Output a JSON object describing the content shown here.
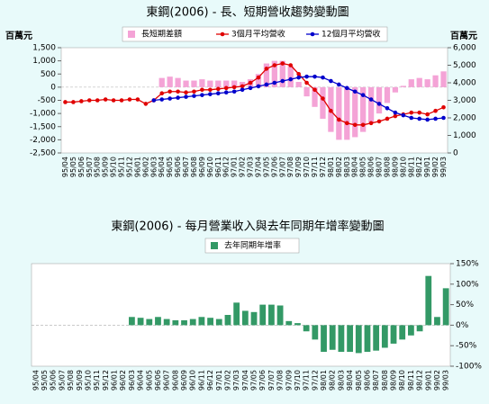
{
  "chart_data": [
    {
      "type": "combo",
      "title": "東鋼(2006) -  長、短期營收趨勢變動圖",
      "ylabel": "百萬元",
      "y2label": "百萬元",
      "categories": [
        "95/04",
        "95/05",
        "95/06",
        "95/07",
        "95/08",
        "95/09",
        "95/10",
        "95/11",
        "95/12",
        "96/01",
        "96/02",
        "96/03",
        "96/04",
        "96/05",
        "96/06",
        "96/07",
        "96/08",
        "96/09",
        "96/10",
        "96/11",
        "96/12",
        "97/01",
        "97/02",
        "97/03",
        "97/04",
        "97/05",
        "97/06",
        "97/07",
        "97/08",
        "97/09",
        "97/10",
        "97/11",
        "97/12",
        "98/01",
        "98/02",
        "98/03",
        "98/04",
        "98/05",
        "98/06",
        "98/07",
        "98/08",
        "98/09",
        "98/10",
        "98/11",
        "98/12",
        "99/01",
        "99/02",
        "99/03"
      ],
      "series": [
        {
          "name": "長短期差額",
          "type": "bar",
          "color": "#f4a3d6",
          "values": [
            null,
            null,
            null,
            null,
            null,
            null,
            null,
            null,
            null,
            null,
            null,
            0,
            350,
            400,
            350,
            250,
            250,
            300,
            250,
            250,
            250,
            250,
            200,
            300,
            500,
            900,
            1000,
            1000,
            800,
            200,
            -350,
            -750,
            -1200,
            -1700,
            -2000,
            -2000,
            -1900,
            -1700,
            -1350,
            -1000,
            -600,
            -200,
            50,
            300,
            350,
            300,
            450,
            600
          ]
        },
        {
          "name": "3個月平均營收",
          "type": "line",
          "axis": "y2",
          "color": "#e00000",
          "values": [
            2900,
            2900,
            2950,
            3000,
            3000,
            3050,
            3000,
            3000,
            3050,
            3050,
            2800,
            3000,
            3400,
            3500,
            3500,
            3450,
            3500,
            3600,
            3600,
            3650,
            3700,
            3750,
            3800,
            4000,
            4300,
            4800,
            5000,
            5100,
            5000,
            4500,
            4000,
            3600,
            3100,
            2400,
            1900,
            1700,
            1600,
            1600,
            1700,
            1800,
            1950,
            2100,
            2200,
            2300,
            2300,
            2200,
            2400,
            2600
          ]
        },
        {
          "name": "12個月平均營收",
          "type": "line",
          "axis": "y2",
          "color": "#0000cc",
          "values": [
            null,
            null,
            null,
            null,
            null,
            null,
            null,
            null,
            null,
            null,
            null,
            3000,
            3050,
            3100,
            3150,
            3200,
            3250,
            3300,
            3350,
            3400,
            3450,
            3500,
            3600,
            3700,
            3800,
            3900,
            4000,
            4100,
            4200,
            4300,
            4350,
            4350,
            4300,
            4100,
            3900,
            3700,
            3500,
            3300,
            3050,
            2800,
            2550,
            2300,
            2150,
            2000,
            1950,
            1900,
            1950,
            2000
          ]
        }
      ],
      "ylim": [
        -2500,
        1500
      ],
      "yticks": [
        {
          "value": -2500,
          "label": "-2,500"
        },
        {
          "value": -2000,
          "label": "-2,000"
        },
        {
          "value": -1500,
          "label": "-1,500"
        },
        {
          "value": -1000,
          "label": "-1,000"
        },
        -500,
        0,
        500,
        {
          "value": 1000,
          "label": "1,000"
        },
        {
          "value": 1500,
          "label": "1,500"
        }
      ],
      "y2lim": [
        0,
        6000
      ],
      "y2ticks": [
        0,
        {
          "value": 1000,
          "label": "1,000"
        },
        {
          "value": 2000,
          "label": "2,000"
        },
        {
          "value": 3000,
          "label": "3,000"
        },
        {
          "value": 4000,
          "label": "4,000"
        },
        {
          "value": 5000,
          "label": "5,000"
        },
        {
          "value": 6000,
          "label": "6,000"
        }
      ],
      "legend": "top"
    },
    {
      "type": "bar",
      "title": "東鋼(2006) -  每月營業收入與去年同期年增率變動圖",
      "categories": [
        "95/04",
        "95/05",
        "95/06",
        "95/07",
        "95/08",
        "95/09",
        "95/10",
        "95/11",
        "95/12",
        "96/01",
        "96/02",
        "96/03",
        "96/04",
        "96/05",
        "96/06",
        "96/07",
        "96/08",
        "96/09",
        "96/10",
        "96/11",
        "96/12",
        "97/01",
        "97/02",
        "97/03",
        "97/04",
        "97/05",
        "97/06",
        "97/07",
        "97/08",
        "97/09",
        "97/10",
        "97/11",
        "97/12",
        "98/01",
        "98/02",
        "98/03",
        "98/04",
        "98/05",
        "98/06",
        "98/07",
        "98/08",
        "98/09",
        "98/10",
        "98/11",
        "98/12",
        "99/01",
        "99/02",
        "99/03"
      ],
      "series": [
        {
          "name": "去年同期年增率",
          "type": "bar",
          "axis": "y2",
          "color": "#339966",
          "values": [
            null,
            null,
            null,
            null,
            null,
            null,
            null,
            null,
            null,
            null,
            null,
            20,
            18,
            15,
            20,
            15,
            12,
            12,
            15,
            20,
            18,
            15,
            25,
            55,
            35,
            32,
            50,
            50,
            48,
            10,
            5,
            -15,
            -35,
            -65,
            -60,
            -65,
            -65,
            -68,
            -65,
            -62,
            -55,
            -45,
            -35,
            -25,
            -15,
            120,
            20,
            90
          ]
        }
      ],
      "y2lim": [
        -100,
        150
      ],
      "y2ticks": [
        {
          "value": -100,
          "label": "-100%"
        },
        {
          "value": -50,
          "label": "-50%"
        },
        {
          "value": 0,
          "label": "0%"
        },
        {
          "value": 50,
          "label": "50%"
        },
        {
          "value": 100,
          "label": "100%"
        },
        {
          "value": 150,
          "label": "150%"
        }
      ],
      "legend": "top"
    }
  ]
}
